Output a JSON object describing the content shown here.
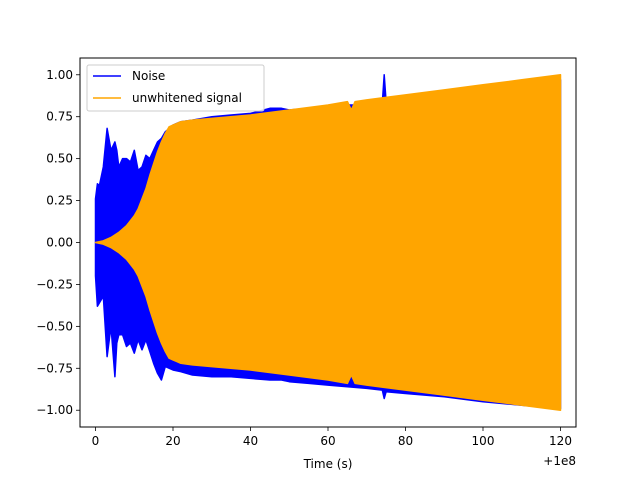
{
  "chart_data": {
    "type": "line",
    "title": "",
    "xlabel": "Time (s)",
    "ylabel": "",
    "x_offset_label": "+1e8",
    "xlim": [
      -4,
      124
    ],
    "ylim": [
      -1.1,
      1.1
    ],
    "x_ticks": [
      0,
      20,
      40,
      60,
      80,
      100,
      120
    ],
    "x_tick_labels": [
      "0",
      "20",
      "40",
      "60",
      "80",
      "100",
      "120"
    ],
    "y_ticks": [
      -1.0,
      -0.75,
      -0.5,
      -0.25,
      0.0,
      0.25,
      0.5,
      0.75,
      1.0
    ],
    "y_tick_labels": [
      "−1.00",
      "−0.75",
      "−0.50",
      "−0.25",
      "0.00",
      "0.25",
      "0.50",
      "0.75",
      "1.00"
    ],
    "legend_position": "top-left",
    "grid": false,
    "series": [
      {
        "name": "Noise",
        "color": "#0000ff",
        "x": [
          0,
          0.5,
          1,
          2,
          3,
          4,
          5,
          5.5,
          6,
          7,
          8,
          9,
          10,
          11,
          12,
          13,
          14,
          15,
          16,
          17,
          18,
          20,
          22,
          25,
          30,
          35,
          40,
          45,
          48,
          50,
          55,
          60,
          65,
          70,
          74,
          74.5,
          75,
          80,
          90,
          100,
          110,
          120
        ],
        "upper": [
          0.26,
          0.35,
          0.34,
          0.45,
          0.68,
          0.55,
          0.6,
          0.55,
          0.45,
          0.5,
          0.5,
          0.48,
          0.55,
          0.43,
          0.45,
          0.52,
          0.5,
          0.55,
          0.6,
          0.62,
          0.66,
          0.7,
          0.72,
          0.73,
          0.75,
          0.76,
          0.77,
          0.8,
          0.8,
          0.79,
          0.8,
          0.81,
          0.82,
          0.82,
          0.83,
          1.0,
          0.84,
          0.85,
          0.87,
          0.9,
          0.94,
          0.97
        ],
        "lower": [
          -0.2,
          -0.38,
          -0.36,
          -0.32,
          -0.68,
          -0.5,
          -0.8,
          -0.6,
          -0.55,
          -0.55,
          -0.62,
          -0.6,
          -0.66,
          -0.58,
          -0.64,
          -0.58,
          -0.65,
          -0.72,
          -0.78,
          -0.82,
          -0.74,
          -0.76,
          -0.77,
          -0.79,
          -0.8,
          -0.8,
          -0.81,
          -0.82,
          -0.82,
          -0.83,
          -0.84,
          -0.85,
          -0.86,
          -0.87,
          -0.88,
          -0.93,
          -0.89,
          -0.9,
          -0.92,
          -0.95,
          -0.97,
          -0.99
        ]
      },
      {
        "name": "unwhitened signal",
        "color": "#ffa500",
        "x": [
          0,
          2,
          4,
          6,
          8,
          10,
          11,
          12,
          13,
          14,
          15,
          16,
          17,
          18,
          19,
          20,
          21,
          22,
          25,
          30,
          40,
          50,
          60,
          65,
          66,
          67,
          70,
          80,
          90,
          100,
          110,
          120
        ],
        "upper": [
          0.0,
          0.01,
          0.03,
          0.06,
          0.1,
          0.16,
          0.2,
          0.26,
          0.32,
          0.4,
          0.47,
          0.54,
          0.6,
          0.65,
          0.69,
          0.7,
          0.71,
          0.72,
          0.73,
          0.74,
          0.76,
          0.79,
          0.82,
          0.84,
          0.79,
          0.84,
          0.85,
          0.88,
          0.91,
          0.94,
          0.97,
          1.0
        ],
        "lower": [
          0.0,
          -0.01,
          -0.03,
          -0.06,
          -0.1,
          -0.16,
          -0.2,
          -0.26,
          -0.32,
          -0.4,
          -0.47,
          -0.54,
          -0.6,
          -0.65,
          -0.69,
          -0.7,
          -0.71,
          -0.72,
          -0.73,
          -0.74,
          -0.76,
          -0.79,
          -0.82,
          -0.84,
          -0.79,
          -0.84,
          -0.85,
          -0.88,
          -0.91,
          -0.94,
          -0.97,
          -1.0
        ]
      }
    ]
  }
}
